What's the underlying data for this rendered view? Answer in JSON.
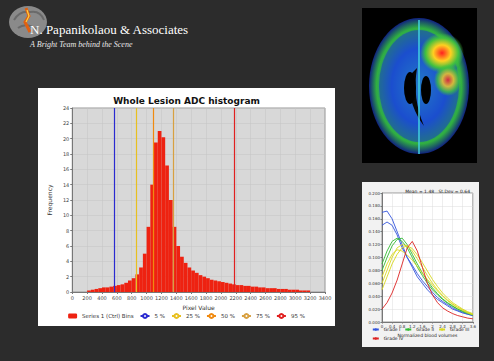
{
  "header": {
    "title": "N. Papanikolaou & Associates",
    "subtitle": "A Bright Team behind the Scene"
  },
  "chart_data": [
    {
      "type": "histogram",
      "title": "Whole Lesion ADC histogram",
      "xlabel": "Pixel Value",
      "ylabel": "Frequency",
      "name": "Series 1 (Ctrl) Bins",
      "color": "#ee2211",
      "bins": [
        200,
        250,
        300,
        350,
        400,
        450,
        500,
        550,
        600,
        650,
        700,
        750,
        800,
        850,
        900,
        950,
        1000,
        1050,
        1100,
        1150,
        1200,
        1250,
        1300,
        1350,
        1400,
        1450,
        1500,
        1550,
        1600,
        1650,
        1700,
        1750,
        1800,
        1850,
        1900,
        1950,
        2000,
        2050,
        2100,
        2150,
        2200,
        2250,
        2300,
        2350,
        2400,
        2450,
        2500,
        2550,
        2600,
        2650,
        2700,
        2750,
        2800,
        2850,
        2900,
        2950,
        3000,
        3050,
        3100,
        3150,
        3200
      ],
      "values": [
        0.2,
        0.3,
        0.4,
        0.5,
        0.6,
        0.6,
        0.7,
        0.8,
        0.9,
        1.0,
        1.2,
        1.5,
        1.8,
        2.3,
        3.2,
        5.0,
        8.5,
        14.0,
        19.5,
        21.0,
        20.2,
        16.5,
        12.0,
        8.5,
        6.0,
        4.6,
        3.8,
        3.2,
        2.8,
        2.5,
        2.2,
        2.0,
        1.8,
        1.6,
        1.5,
        1.4,
        1.3,
        1.2,
        1.1,
        1.0,
        0.9,
        0.9,
        0.8,
        0.8,
        0.7,
        0.7,
        0.6,
        0.6,
        0.5,
        0.5,
        0.5,
        0.4,
        0.4,
        0.4,
        0.3,
        0.3,
        0.3,
        0.2,
        0.2,
        0.2
      ],
      "percentiles": [
        {
          "name": "5 %",
          "value": 560,
          "color": "#2a2ad0"
        },
        {
          "name": "25 %",
          "value": 860,
          "color": "#e8c020"
        },
        {
          "name": "50 %",
          "value": 1095,
          "color": "#f08a10"
        },
        {
          "name": "75 %",
          "value": 1355,
          "color": "#d8a040"
        },
        {
          "name": "95 %",
          "value": 2175,
          "color": "#e02020"
        }
      ],
      "xlim": [
        0,
        3400
      ],
      "xticks": [
        0,
        200,
        400,
        600,
        800,
        1000,
        1200,
        1400,
        1600,
        1800,
        2000,
        2200,
        2400,
        2600,
        2800,
        3000,
        3200,
        3400
      ],
      "ylim": [
        0,
        24
      ],
      "yticks": [
        0,
        2,
        4,
        6,
        8,
        10,
        12,
        14,
        16,
        18,
        20,
        22,
        24
      ],
      "grid": true,
      "legend": "bottom"
    },
    {
      "type": "line",
      "annotations": [
        "Mean = 1.48",
        "St.Dev = 0.64"
      ],
      "xlabel": "Normalized blood volumes",
      "x": [
        0,
        0.2,
        0.4,
        0.6,
        0.8,
        1,
        1.2,
        1.4,
        1.6,
        1.8,
        2,
        2.2,
        2.4,
        2.6,
        2.8,
        3,
        3.2,
        3.4,
        3.6
      ],
      "series": [
        {
          "name": "Grade I",
          "color": "#3355dd",
          "values": [
            0.17,
            0.172,
            0.16,
            0.14,
            0.12,
            0.1,
            0.085,
            0.07,
            0.06,
            0.05,
            0.042,
            0.035,
            0.03,
            0.025,
            0.02,
            0.017,
            0.014,
            0.012,
            0.01
          ]
        },
        {
          "name": "Grade I",
          "color": "#3355dd",
          "values": [
            0.15,
            0.155,
            0.15,
            0.135,
            0.115,
            0.1,
            0.088,
            0.075,
            0.064,
            0.055,
            0.046,
            0.038,
            0.032,
            0.027,
            0.022,
            0.018,
            0.015,
            0.012,
            0.01
          ]
        },
        {
          "name": "Grade II",
          "color": "#33bb33",
          "values": [
            0.09,
            0.11,
            0.125,
            0.13,
            0.125,
            0.115,
            0.1,
            0.085,
            0.072,
            0.06,
            0.05,
            0.042,
            0.035,
            0.029,
            0.024,
            0.02,
            0.016,
            0.013,
            0.011
          ]
        },
        {
          "name": "Grade II",
          "color": "#33bb33",
          "values": [
            0.08,
            0.1,
            0.118,
            0.128,
            0.13,
            0.12,
            0.105,
            0.09,
            0.076,
            0.064,
            0.053,
            0.044,
            0.036,
            0.03,
            0.025,
            0.02,
            0.017,
            0.014,
            0.011
          ]
        },
        {
          "name": "Grade III",
          "color": "#d8d820",
          "values": [
            0.06,
            0.08,
            0.1,
            0.115,
            0.12,
            0.118,
            0.11,
            0.098,
            0.085,
            0.072,
            0.06,
            0.05,
            0.041,
            0.034,
            0.028,
            0.023,
            0.019,
            0.015,
            0.012
          ]
        },
        {
          "name": "Grade III",
          "color": "#d8d820",
          "values": [
            0.05,
            0.07,
            0.09,
            0.105,
            0.115,
            0.118,
            0.114,
            0.104,
            0.092,
            0.079,
            0.066,
            0.055,
            0.045,
            0.037,
            0.03,
            0.025,
            0.02,
            0.016,
            0.013
          ]
        },
        {
          "name": "Grade III",
          "color": "#d8d820",
          "values": [
            0.07,
            0.09,
            0.105,
            0.112,
            0.11,
            0.104,
            0.096,
            0.086,
            0.076,
            0.066,
            0.057,
            0.048,
            0.04,
            0.033,
            0.027,
            0.022,
            0.018,
            0.014,
            0.011
          ]
        },
        {
          "name": "Grade IV",
          "color": "#dd2222",
          "values": [
            0.02,
            0.03,
            0.045,
            0.065,
            0.09,
            0.115,
            0.125,
            0.11,
            0.085,
            0.06,
            0.042,
            0.03,
            0.022,
            0.017,
            0.013,
            0.01,
            0.008,
            0.006,
            0.005
          ]
        }
      ],
      "xlim": [
        0,
        3.6
      ],
      "xticks": [
        0,
        0.4,
        0.8,
        1.2,
        1.6,
        2,
        2.4,
        2.8,
        3.2,
        3.6
      ],
      "ylim": [
        0,
        0.2
      ],
      "yticks": [
        {
          "value": 0,
          "label": "0.000"
        },
        {
          "value": 0.02,
          "label": "0.020"
        },
        {
          "value": 0.04,
          "label": "0.040"
        },
        {
          "value": 0.06,
          "label": "0.060"
        },
        {
          "value": 0.08,
          "label": "0.080"
        },
        {
          "value": 0.1,
          "label": "0.100"
        },
        {
          "value": 0.12,
          "label": "0.120"
        },
        {
          "value": 0.14,
          "label": "0.140"
        },
        {
          "value": 0.16,
          "label": "0.160"
        },
        {
          "value": 0.18,
          "label": "0.180"
        },
        {
          "value": 0.2,
          "label": "0.200"
        }
      ],
      "grid": true,
      "legend": "bottom"
    }
  ]
}
